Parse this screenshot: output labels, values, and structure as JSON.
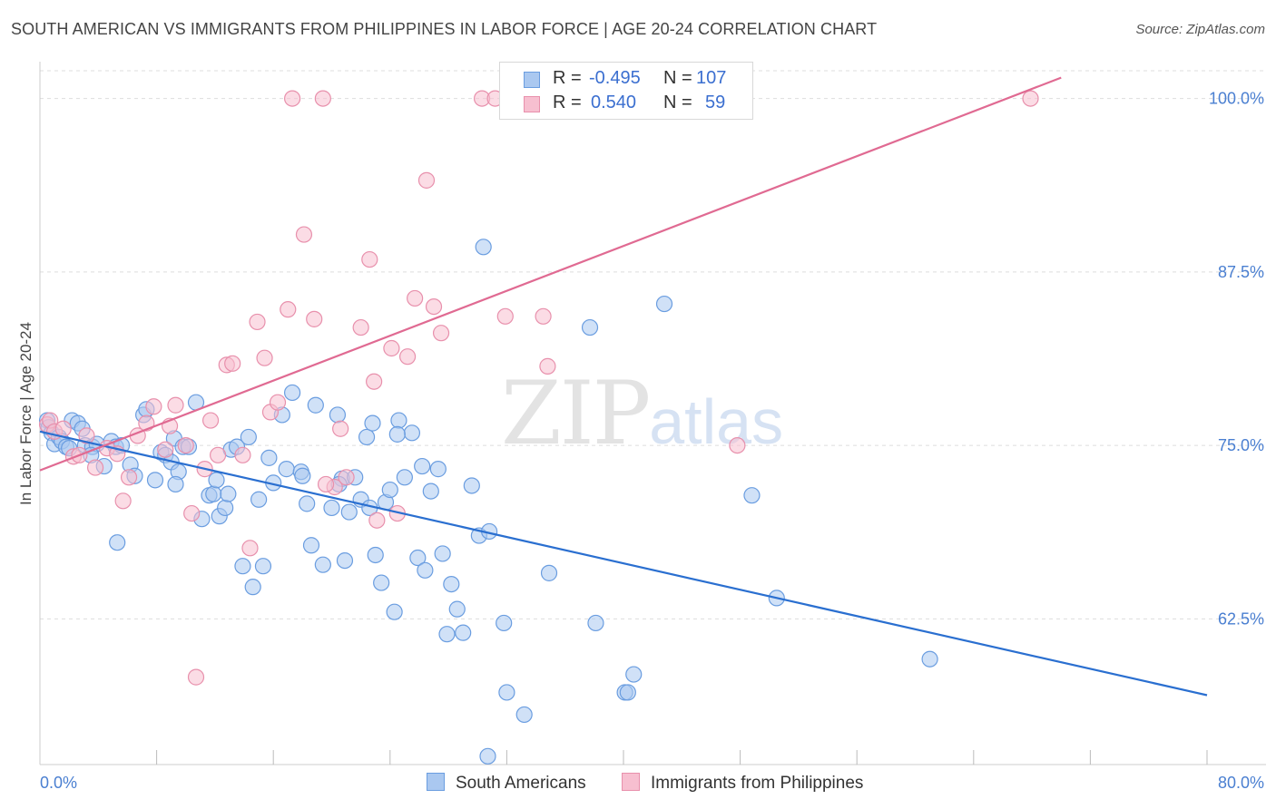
{
  "title": "SOUTH AMERICAN VS IMMIGRANTS FROM PHILIPPINES IN LABOR FORCE | AGE 20-24 CORRELATION CHART",
  "source": "Source: ZipAtlas.com",
  "watermark": {
    "zip": "ZIP",
    "atlas": "atlas"
  },
  "legend_top": {
    "series1": {
      "r_label": "R =",
      "r_value": "-0.495",
      "n_label": "N =",
      "n_value": "107"
    },
    "series2": {
      "r_label": "R =",
      "r_value": "0.540",
      "n_label": "N =",
      "n_value": "59"
    }
  },
  "colors": {
    "south_americans_fill": "#aac8f0",
    "south_americans_stroke": "#6a9de0",
    "south_americans_line": "#2a6fd0",
    "philippines_fill": "#f7bfd0",
    "philippines_stroke": "#e890ac",
    "philippines_line": "#e06a92",
    "tick_text": "#4a7fd1",
    "grid": "#dddddd"
  },
  "chart_data": {
    "type": "scatter",
    "title": "SOUTH AMERICAN VS IMMIGRANTS FROM PHILIPPINES IN LABOR FORCE | AGE 20-24 CORRELATION CHART",
    "xlabel": "",
    "ylabel": "In Labor Force | Age 20-24",
    "xlim": [
      0,
      80
    ],
    "ylim": [
      52,
      102
    ],
    "x_tick_labels": [
      "0.0%",
      "80.0%"
    ],
    "y_ticks": [
      62.5,
      75.0,
      87.5,
      100.0
    ],
    "y_tick_labels": [
      "62.5%",
      "75.0%",
      "87.5%",
      "100.0%"
    ],
    "grid": "horizontal dashed",
    "legend_position": "top-center",
    "series": [
      {
        "name": "South Americans",
        "r": -0.495,
        "n": 107,
        "trend": {
          "x": [
            0,
            80
          ],
          "y": [
            76.0,
            57.0
          ]
        },
        "points": [
          [
            0.5,
            76.8
          ],
          [
            0.6,
            76.3
          ],
          [
            0.8,
            75.9
          ],
          [
            1.0,
            75.1
          ],
          [
            1.3,
            75.6
          ],
          [
            1.5,
            75.3
          ],
          [
            1.8,
            74.9
          ],
          [
            2.0,
            74.8
          ],
          [
            2.2,
            76.8
          ],
          [
            2.6,
            76.6
          ],
          [
            2.9,
            76.2
          ],
          [
            3.1,
            75.0
          ],
          [
            3.6,
            74.9
          ],
          [
            3.9,
            75.1
          ],
          [
            4.4,
            73.5
          ],
          [
            4.9,
            75.3
          ],
          [
            5.2,
            74.9
          ],
          [
            5.6,
            75.0
          ],
          [
            6.2,
            73.6
          ],
          [
            6.5,
            72.8
          ],
          [
            7.1,
            77.2
          ],
          [
            7.3,
            77.6
          ],
          [
            7.9,
            72.5
          ],
          [
            8.3,
            74.5
          ],
          [
            8.6,
            74.3
          ],
          [
            9.0,
            73.8
          ],
          [
            9.2,
            75.5
          ],
          [
            9.5,
            73.1
          ],
          [
            9.8,
            74.9
          ],
          [
            10.2,
            74.9
          ],
          [
            10.7,
            78.1
          ],
          [
            11.1,
            69.7
          ],
          [
            11.6,
            71.4
          ],
          [
            11.9,
            71.5
          ],
          [
            12.1,
            72.5
          ],
          [
            12.3,
            69.9
          ],
          [
            12.7,
            70.5
          ],
          [
            13.1,
            74.7
          ],
          [
            13.5,
            74.9
          ],
          [
            13.9,
            66.3
          ],
          [
            14.3,
            75.6
          ],
          [
            14.6,
            64.8
          ],
          [
            15.0,
            71.1
          ],
          [
            15.3,
            66.3
          ],
          [
            15.7,
            74.1
          ],
          [
            16.0,
            72.3
          ],
          [
            16.6,
            77.2
          ],
          [
            16.9,
            73.3
          ],
          [
            17.3,
            78.8
          ],
          [
            17.9,
            73.1
          ],
          [
            18.3,
            70.8
          ],
          [
            18.6,
            67.8
          ],
          [
            18.9,
            77.9
          ],
          [
            19.4,
            66.4
          ],
          [
            20.0,
            70.5
          ],
          [
            20.4,
            77.2
          ],
          [
            20.7,
            72.6
          ],
          [
            20.9,
            66.7
          ],
          [
            21.2,
            70.2
          ],
          [
            21.6,
            72.7
          ],
          [
            22.0,
            71.1
          ],
          [
            22.4,
            75.6
          ],
          [
            22.8,
            76.6
          ],
          [
            23.0,
            67.1
          ],
          [
            23.4,
            65.1
          ],
          [
            23.7,
            70.9
          ],
          [
            24.0,
            71.8
          ],
          [
            24.3,
            63.0
          ],
          [
            24.6,
            76.8
          ],
          [
            25.0,
            72.7
          ],
          [
            25.5,
            75.9
          ],
          [
            25.9,
            66.9
          ],
          [
            26.2,
            73.5
          ],
          [
            26.4,
            66.0
          ],
          [
            26.8,
            71.7
          ],
          [
            27.3,
            73.3
          ],
          [
            27.6,
            67.2
          ],
          [
            27.9,
            61.4
          ],
          [
            28.2,
            65.0
          ],
          [
            28.6,
            63.2
          ],
          [
            29.0,
            61.5
          ],
          [
            29.6,
            72.1
          ],
          [
            30.1,
            68.5
          ],
          [
            30.4,
            89.3
          ],
          [
            30.8,
            68.8
          ],
          [
            31.8,
            62.2
          ],
          [
            32.0,
            57.2
          ],
          [
            33.2,
            55.6
          ],
          [
            34.9,
            65.8
          ],
          [
            37.7,
            83.5
          ],
          [
            38.1,
            62.2
          ],
          [
            40.1,
            57.2
          ],
          [
            40.3,
            57.2
          ],
          [
            40.7,
            58.5
          ],
          [
            42.8,
            85.2
          ],
          [
            48.8,
            71.4
          ],
          [
            50.5,
            64.0
          ],
          [
            61.0,
            59.6
          ],
          [
            30.7,
            52.6
          ],
          [
            20.5,
            72.2
          ],
          [
            12.9,
            71.5
          ],
          [
            18.0,
            72.8
          ],
          [
            24.5,
            75.8
          ],
          [
            9.3,
            72.2
          ],
          [
            5.3,
            68.0
          ],
          [
            3.5,
            74.3
          ],
          [
            22.6,
            70.5
          ]
        ]
      },
      {
        "name": "Immigrants from Philippines",
        "r": 0.54,
        "n": 59,
        "trend": {
          "x": [
            0,
            70
          ],
          "y": [
            73.2,
            101.5
          ]
        },
        "points": [
          [
            0.5,
            76.5
          ],
          [
            0.7,
            76.8
          ],
          [
            1.0,
            76.0
          ],
          [
            1.6,
            76.2
          ],
          [
            2.3,
            74.2
          ],
          [
            2.7,
            74.3
          ],
          [
            3.2,
            75.7
          ],
          [
            3.8,
            73.4
          ],
          [
            4.6,
            74.8
          ],
          [
            5.3,
            74.4
          ],
          [
            5.7,
            71.0
          ],
          [
            6.1,
            72.7
          ],
          [
            6.7,
            75.7
          ],
          [
            7.3,
            76.6
          ],
          [
            7.8,
            77.8
          ],
          [
            8.6,
            74.7
          ],
          [
            8.9,
            76.4
          ],
          [
            9.3,
            77.9
          ],
          [
            10.0,
            75.0
          ],
          [
            10.4,
            70.1
          ],
          [
            10.7,
            58.3
          ],
          [
            11.3,
            73.3
          ],
          [
            11.7,
            76.8
          ],
          [
            12.2,
            74.3
          ],
          [
            12.8,
            80.8
          ],
          [
            13.2,
            80.9
          ],
          [
            13.9,
            74.3
          ],
          [
            14.4,
            67.6
          ],
          [
            14.9,
            83.9
          ],
          [
            15.4,
            81.3
          ],
          [
            15.8,
            77.4
          ],
          [
            16.3,
            78.1
          ],
          [
            17.0,
            84.8
          ],
          [
            17.3,
            100.0
          ],
          [
            18.1,
            90.2
          ],
          [
            18.8,
            84.1
          ],
          [
            19.4,
            100.0
          ],
          [
            20.2,
            72.0
          ],
          [
            20.6,
            76.2
          ],
          [
            21.0,
            72.7
          ],
          [
            22.0,
            83.5
          ],
          [
            22.6,
            88.4
          ],
          [
            22.9,
            79.6
          ],
          [
            23.1,
            69.6
          ],
          [
            24.1,
            82.0
          ],
          [
            24.5,
            70.1
          ],
          [
            25.2,
            81.4
          ],
          [
            25.7,
            85.6
          ],
          [
            26.5,
            94.1
          ],
          [
            27.0,
            85.0
          ],
          [
            27.5,
            83.1
          ],
          [
            30.3,
            100.0
          ],
          [
            31.2,
            100.0
          ],
          [
            31.9,
            84.3
          ],
          [
            34.8,
            80.7
          ],
          [
            34.5,
            84.3
          ],
          [
            47.8,
            75.0
          ],
          [
            67.9,
            100.0
          ],
          [
            19.6,
            72.2
          ]
        ]
      }
    ]
  },
  "bottom_legend": {
    "series1": "South Americans",
    "series2": "Immigrants from Philippines"
  }
}
